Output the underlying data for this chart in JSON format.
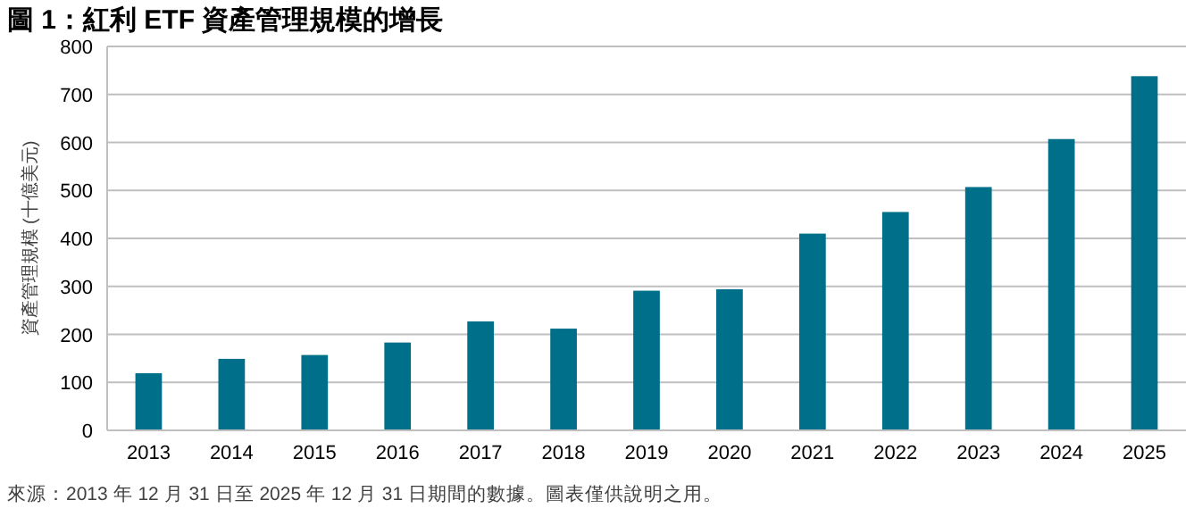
{
  "chart_data": {
    "type": "bar",
    "title": "圖 1：紅利 ETF 資產管理規模的增長",
    "ylabel": "資產管理規模 (十億美元)",
    "categories": [
      "2013",
      "2014",
      "2015",
      "2016",
      "2017",
      "2018",
      "2019",
      "2020",
      "2021",
      "2022",
      "2023",
      "2024",
      "2025"
    ],
    "values": [
      119,
      149,
      157,
      183,
      227,
      212,
      291,
      294,
      410,
      455,
      507,
      607,
      738
    ],
    "color": "#006f8a",
    "ylim": [
      0,
      800
    ],
    "yticks": [
      0,
      100,
      200,
      300,
      400,
      500,
      600,
      700,
      800
    ],
    "grid": "y",
    "annotations": [
      "來源：2013 年 12 月 31 日至 2025 年 12 月 31 日期間的數據。圖表僅供說明之用。"
    ]
  }
}
